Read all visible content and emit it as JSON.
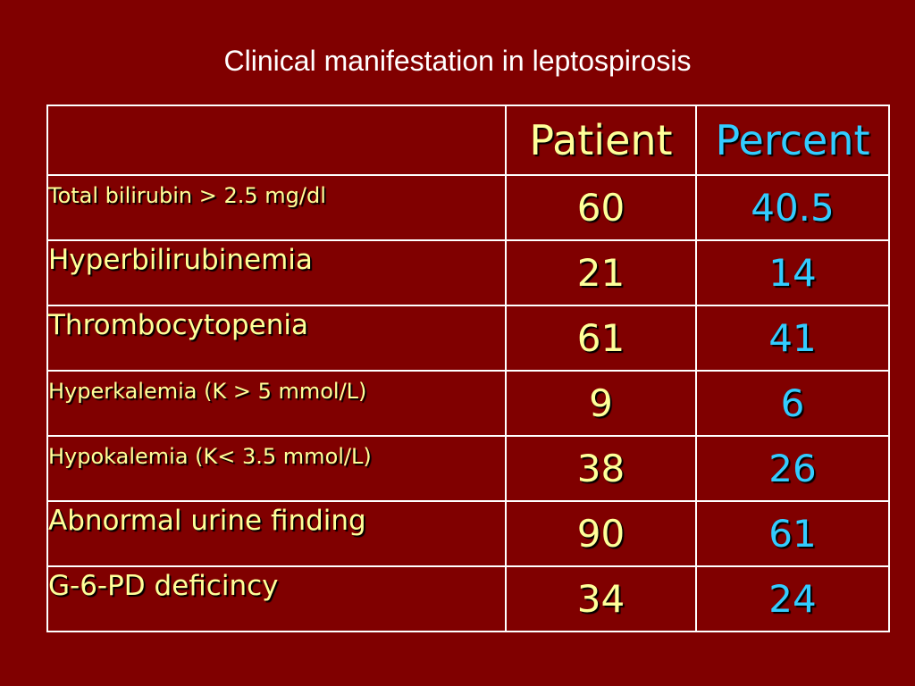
{
  "slide": {
    "title": "Clinical manifestation in leptospirosis"
  },
  "colors": {
    "background": "#800000",
    "label_text": "#ffff99",
    "patient_text": "#ffff99",
    "percent_text": "#33ccff",
    "border": "#ffffff",
    "title_text": "#ffffff"
  },
  "table": {
    "headers": {
      "corner": "",
      "patient": "Patient",
      "percent": "Percent"
    },
    "rows": [
      {
        "label": "Total bilirubin > 2.5 mg/dl",
        "patient": "60",
        "percent": "40.5"
      },
      {
        "label": "Hyperbilirubinemia",
        "patient": "21",
        "percent": "14"
      },
      {
        "label": "Thrombocytopenia",
        "patient": "61",
        "percent": "41"
      },
      {
        "label": "Hyperkalemia (K > 5 mmol/L)",
        "patient": "9",
        "percent": "6"
      },
      {
        "label": "Hypokalemia (K< 3.5 mmol/L)",
        "patient": "38",
        "percent": "26"
      },
      {
        "label": "Abnormal urine finding",
        "patient": "90",
        "percent": "61"
      },
      {
        "label": "G-6-PD  deficincy",
        "patient": "34",
        "percent": "24"
      }
    ]
  }
}
